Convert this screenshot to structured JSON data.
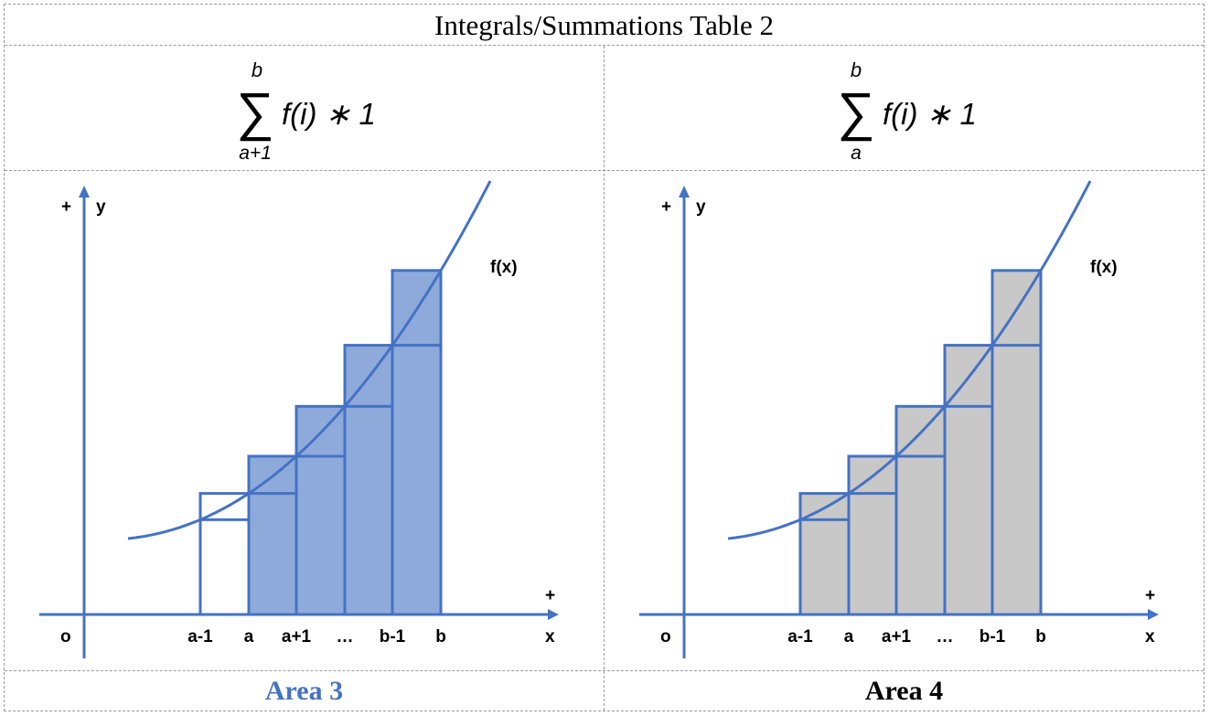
{
  "title": "Integrals/Summations Table 2",
  "panels": [
    {
      "formula": {
        "sigma": "∑",
        "upper": "b",
        "lower": "a+1",
        "body": "f(i) ∗ 1"
      },
      "footer": "Area 3",
      "footer_color": "#4472c4",
      "fill_color": "#8eaadb",
      "shaded_rects": [
        "a",
        "a+1",
        "…",
        "b-1",
        "b"
      ],
      "outline_only_rects": [
        "a-1"
      ]
    },
    {
      "formula": {
        "sigma": "∑",
        "upper": "b",
        "lower": "a",
        "body": "f(i) ∗ 1"
      },
      "footer": "Area 4",
      "footer_color": "#000000",
      "fill_color": "#c8c8c8",
      "shaded_rects": [
        "a-1",
        "a",
        "a+1",
        "…",
        "b-1",
        "b"
      ],
      "outline_only_rects": []
    }
  ],
  "graph": {
    "origin_label": "o",
    "x_axis_label": "x",
    "y_axis_label": "y",
    "plus_label": "+",
    "curve_label": "f(x)",
    "x_ticks": [
      "a-1",
      "a",
      "a+1",
      "…",
      "b-1",
      "b"
    ]
  },
  "colors": {
    "stroke": "#4472c4",
    "tick_text": "#000000"
  }
}
